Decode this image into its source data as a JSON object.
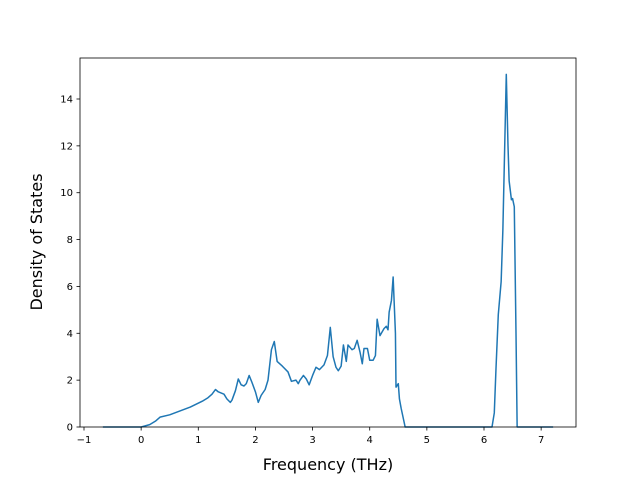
{
  "chart_data": {
    "type": "line",
    "x_label": "Frequency (THz)",
    "y_label": "Density of States",
    "xlim": [
      -1.07,
      7.61
    ],
    "ylim": [
      0,
      15.75
    ],
    "xticks": [
      {
        "value": -1,
        "label": "−1"
      },
      0,
      1,
      2,
      3,
      4,
      5,
      6,
      7
    ],
    "yticks": [
      0,
      2,
      4,
      6,
      8,
      10,
      12,
      14
    ],
    "series": [
      {
        "color": "#1f77b4",
        "x": [
          -0.67,
          0,
          0.15,
          0.25,
          0.33,
          0.5,
          0.86,
          1.07,
          1.17,
          1.24,
          1.3,
          1.35,
          1.45,
          1.5,
          1.56,
          1.59,
          1.65,
          1.7,
          1.75,
          1.8,
          1.84,
          1.89,
          1.94,
          2.0,
          2.05,
          2.1,
          2.17,
          2.22,
          2.28,
          2.33,
          2.38,
          2.47,
          2.57,
          2.63,
          2.71,
          2.75,
          2.78,
          2.84,
          2.89,
          2.94,
          3.0,
          3.06,
          3.12,
          3.2,
          3.26,
          3.31,
          3.36,
          3.41,
          3.45,
          3.5,
          3.54,
          3.59,
          3.62,
          3.69,
          3.73,
          3.78,
          3.83,
          3.87,
          3.9,
          3.96,
          4.0,
          4.06,
          4.1,
          4.13,
          4.18,
          4.25,
          4.29,
          4.32,
          4.34,
          4.38,
          4.41,
          4.45,
          4.46,
          4.5,
          4.52,
          4.55,
          4.62,
          6.14,
          6.18,
          6.21,
          6.25,
          6.3,
          6.33,
          6.39,
          6.42,
          6.44,
          6.48,
          6.5,
          6.53,
          6.56,
          6.58,
          7.21
        ],
        "values": [
          0,
          0,
          0.1,
          0.25,
          0.42,
          0.52,
          0.85,
          1.1,
          1.25,
          1.4,
          1.6,
          1.5,
          1.4,
          1.2,
          1.05,
          1.15,
          1.55,
          2.05,
          1.8,
          1.75,
          1.85,
          2.2,
          1.9,
          1.5,
          1.05,
          1.35,
          1.6,
          2.0,
          3.3,
          3.65,
          2.8,
          2.6,
          2.35,
          1.95,
          2.0,
          1.85,
          2.0,
          2.2,
          2.05,
          1.8,
          2.2,
          2.55,
          2.45,
          2.65,
          3.05,
          4.25,
          3.0,
          2.55,
          2.4,
          2.6,
          3.5,
          2.8,
          3.5,
          3.3,
          3.35,
          3.7,
          3.2,
          2.7,
          3.35,
          3.35,
          2.85,
          2.85,
          3.05,
          4.6,
          3.9,
          4.2,
          4.3,
          4.15,
          4.9,
          5.4,
          6.4,
          4.0,
          1.7,
          1.85,
          1.2,
          0.8,
          0,
          0,
          0.6,
          2.5,
          4.8,
          6.2,
          8.4,
          15.05,
          12,
          10.5,
          9.7,
          9.75,
          9.4,
          4,
          0,
          0
        ]
      }
    ]
  }
}
